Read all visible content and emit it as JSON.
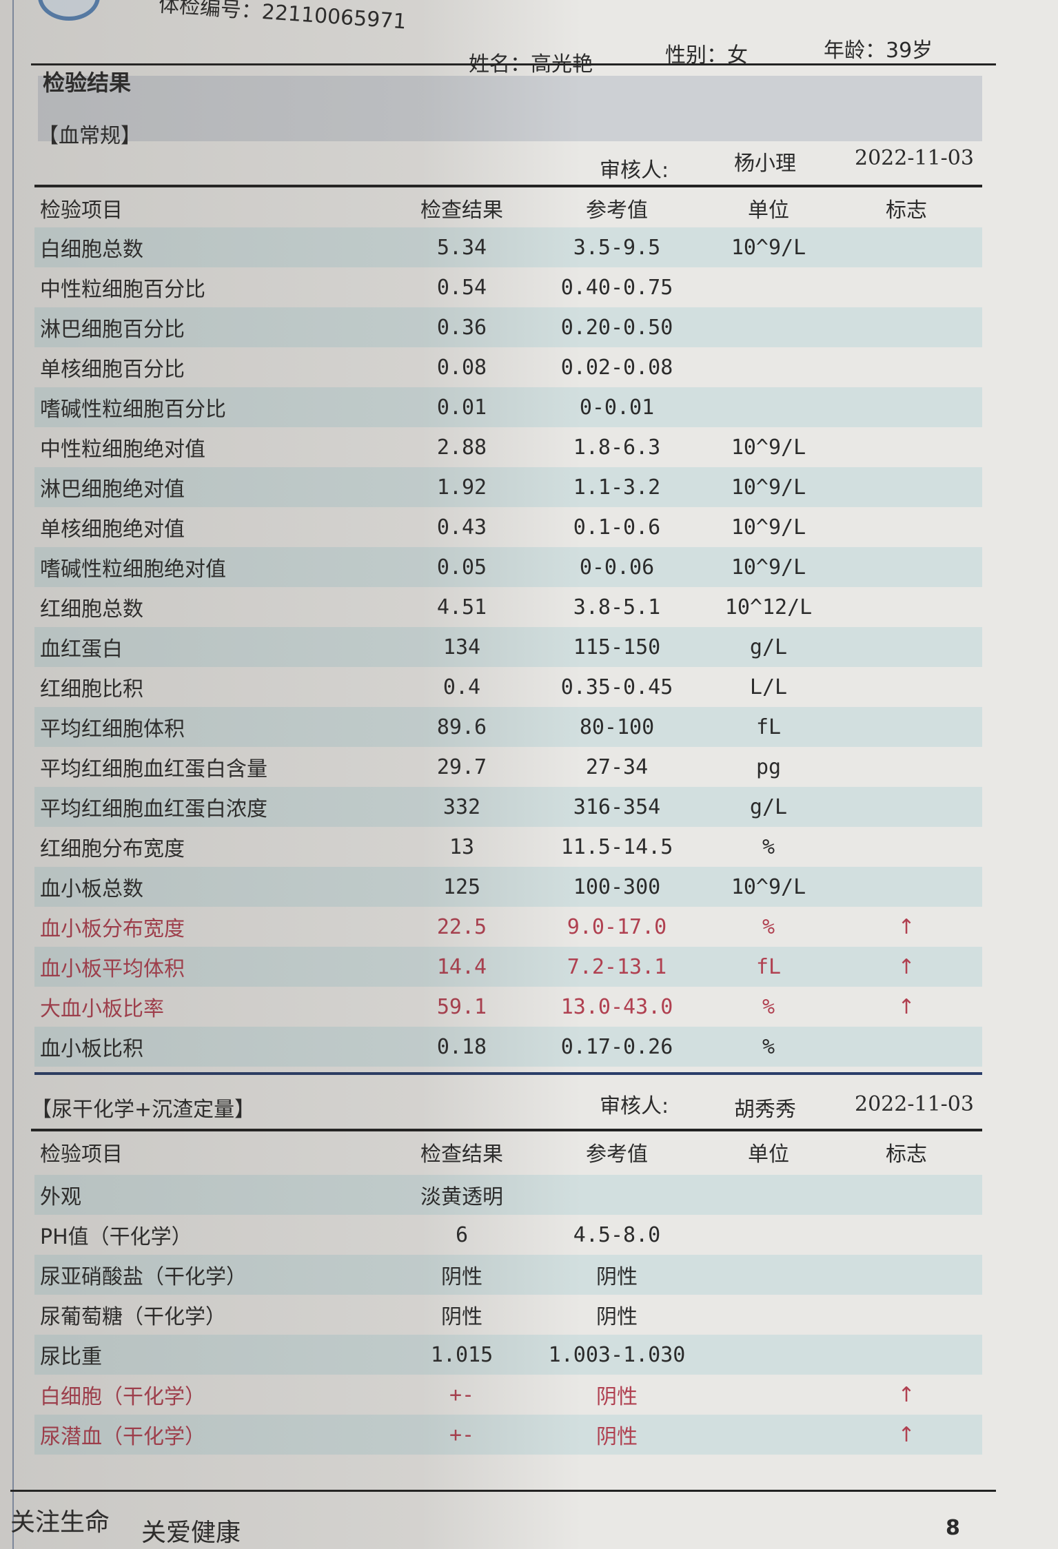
{
  "header": {
    "exam_no_label": "体检编号：",
    "exam_no": "22110065971",
    "name": "姓名：高光艳",
    "gender": "性别：女",
    "age": "年龄：39岁",
    "section_title": "检验结果"
  },
  "columns": [
    "检验项目",
    "检查结果",
    "参考值",
    "单位",
    "标志"
  ],
  "blood": {
    "title": "【血常规】",
    "reviewer_label": "审核人:",
    "reviewer": "杨小理",
    "date": "2022-11-03",
    "rows": [
      [
        "白细胞总数",
        "5.34",
        "3.5-9.5",
        "10^9/L",
        ""
      ],
      [
        "中性粒细胞百分比",
        "0.54",
        "0.40-0.75",
        "",
        ""
      ],
      [
        "淋巴细胞百分比",
        "0.36",
        "0.20-0.50",
        "",
        ""
      ],
      [
        "单核细胞百分比",
        "0.08",
        "0.02-0.08",
        "",
        ""
      ],
      [
        "嗜碱性粒细胞百分比",
        "0.01",
        "0-0.01",
        "",
        ""
      ],
      [
        "中性粒细胞绝对值",
        "2.88",
        "1.8-6.3",
        "10^9/L",
        ""
      ],
      [
        "淋巴细胞绝对值",
        "1.92",
        "1.1-3.2",
        "10^9/L",
        ""
      ],
      [
        "单核细胞绝对值",
        "0.43",
        "0.1-0.6",
        "10^9/L",
        ""
      ],
      [
        "嗜碱性粒细胞绝对值",
        "0.05",
        "0-0.06",
        "10^9/L",
        ""
      ],
      [
        "红细胞总数",
        "4.51",
        "3.8-5.1",
        "10^12/L",
        ""
      ],
      [
        "血红蛋白",
        "134",
        "115-150",
        "g/L",
        ""
      ],
      [
        "红细胞比积",
        "0.4",
        "0.35-0.45",
        "L/L",
        ""
      ],
      [
        "平均红细胞体积",
        "89.6",
        "80-100",
        "fL",
        ""
      ],
      [
        "平均红细胞血红蛋白含量",
        "29.7",
        "27-34",
        "pg",
        ""
      ],
      [
        "平均红细胞血红蛋白浓度",
        "332",
        "316-354",
        "g/L",
        ""
      ],
      [
        "红细胞分布宽度",
        "13",
        "11.5-14.5",
        "%",
        ""
      ],
      [
        "血小板总数",
        "125",
        "100-300",
        "10^9/L",
        ""
      ],
      [
        "血小板分布宽度",
        "22.5",
        "9.0-17.0",
        "%",
        "↑"
      ],
      [
        "血小板平均体积",
        "14.4",
        "7.2-13.1",
        "fL",
        "↑"
      ],
      [
        "大血小板比率",
        "59.1",
        "13.0-43.0",
        "%",
        "↑"
      ],
      [
        "血小板比积",
        "0.18",
        "0.17-0.26",
        "%",
        ""
      ]
    ]
  },
  "urine": {
    "title": "【尿干化学+沉渣定量】",
    "reviewer_label": "审核人:",
    "reviewer": "胡秀秀",
    "date": "2022-11-03",
    "rows": [
      [
        "外观",
        "淡黄透明",
        "",
        "",
        ""
      ],
      [
        "PH值（干化学）",
        "6",
        "4.5-8.0",
        "",
        ""
      ],
      [
        "尿亚硝酸盐（干化学）",
        "阴性",
        "阴性",
        "",
        ""
      ],
      [
        "尿葡萄糖（干化学）",
        "阴性",
        "阴性",
        "",
        ""
      ],
      [
        "尿比重",
        "1.015",
        "1.003-1.030",
        "",
        ""
      ],
      [
        "白细胞（干化学）",
        "+-",
        "阴性",
        "",
        "↑"
      ],
      [
        "尿潜血（干化学）",
        "+-",
        "阴性",
        "",
        "↑"
      ]
    ]
  },
  "footer": {
    "slogan1": "关注生命",
    "slogan2": "关爱健康",
    "page": "8"
  },
  "colors": {
    "stripe": "#d2dfdf",
    "abnormal": "#b04050",
    "paper": "#e9e8e5"
  }
}
